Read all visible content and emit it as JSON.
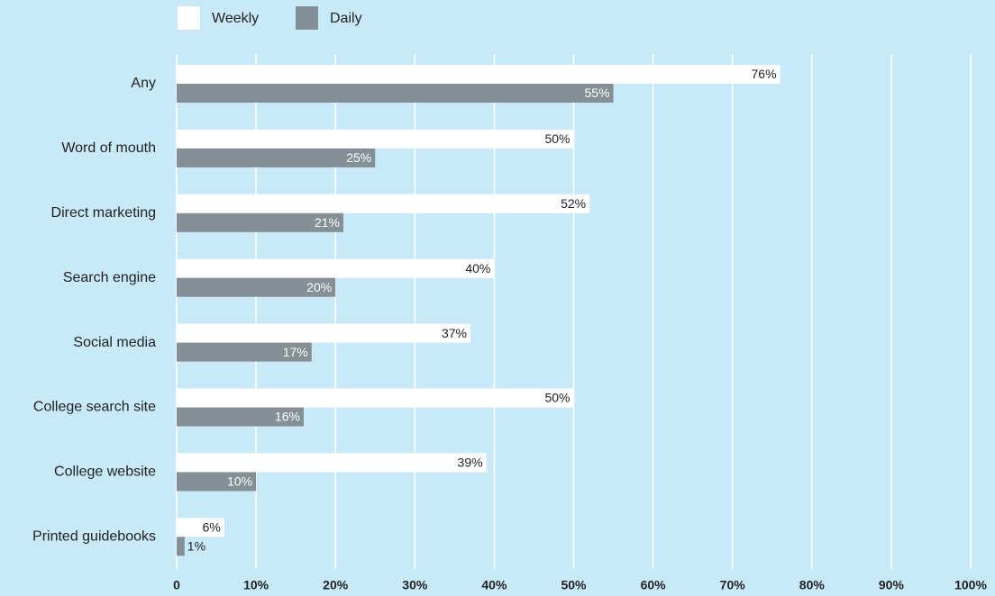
{
  "chart_data": {
    "type": "hbar",
    "categories": [
      "Any",
      "Word of mouth",
      "Direct marketing",
      "Search engine",
      "Social media",
      "College search site",
      "College website",
      "Printed guidebooks"
    ],
    "series": [
      {
        "name": "Weekly",
        "color": "#ffffff",
        "values": [
          76,
          50,
          52,
          40,
          37,
          50,
          39,
          6
        ],
        "value_labels": [
          "76%",
          "50%",
          "52%",
          "40%",
          "37%",
          "50%",
          "39%",
          "6%"
        ]
      },
      {
        "name": "Daily",
        "color": "#848f96",
        "values": [
          55,
          25,
          21,
          20,
          17,
          16,
          10,
          1
        ],
        "value_labels": [
          "55%",
          "25%",
          "21%",
          "20%",
          "17%",
          "16%",
          "10%",
          "1%"
        ]
      }
    ],
    "xlim": [
      0,
      100
    ],
    "xticks": [
      0,
      {
        "value": 10,
        "label": "10%"
      },
      {
        "value": 20,
        "label": "20%"
      },
      {
        "value": 30,
        "label": "30%"
      },
      {
        "value": 40,
        "label": "40%"
      },
      {
        "value": 50,
        "label": "50%"
      },
      {
        "value": 60,
        "label": "60%"
      },
      {
        "value": 70,
        "label": "70%"
      },
      {
        "value": 80,
        "label": "80%"
      },
      {
        "value": 90,
        "label": "90%"
      },
      {
        "value": 100,
        "label": "100%"
      }
    ],
    "grid": true,
    "legend": "top"
  }
}
